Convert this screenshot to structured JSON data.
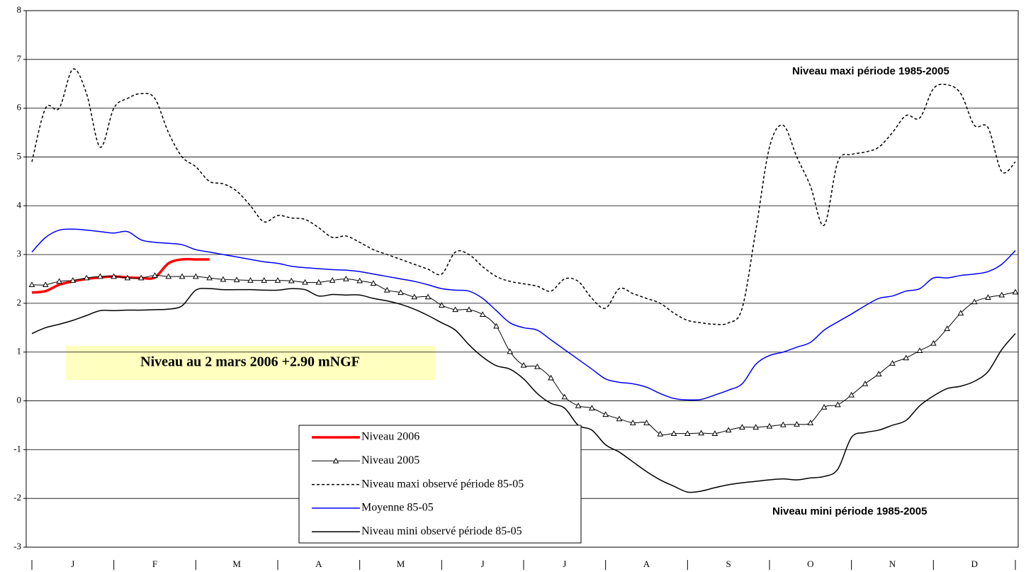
{
  "chart_data": {
    "type": "line",
    "categories": [
      "J",
      "F",
      "M",
      "A",
      "M",
      "J",
      "J",
      "A",
      "S",
      "O",
      "N",
      "D"
    ],
    "x": [
      0,
      1,
      2,
      3,
      4,
      5,
      6,
      7,
      8,
      9,
      10,
      11,
      12,
      13,
      14,
      15,
      16,
      17,
      18,
      19,
      20,
      21,
      22,
      23,
      24,
      25,
      26,
      27,
      28,
      29,
      30,
      31,
      32,
      33,
      34,
      35,
      36,
      37,
      38,
      39,
      40,
      41,
      42,
      43,
      44,
      45,
      46,
      47,
      48,
      49,
      50,
      51,
      52,
      53,
      54,
      55,
      56,
      57,
      58,
      59,
      60,
      61,
      62,
      63,
      64,
      65,
      66,
      67,
      68,
      69,
      70,
      71,
      72
    ],
    "xlim": [
      0,
      72
    ],
    "ylim": [
      -3,
      8
    ],
    "yticks": [
      -3,
      -2,
      -1,
      0,
      1,
      2,
      3,
      4,
      5,
      6,
      7,
      8
    ],
    "grid": true,
    "series": [
      {
        "name": "Niveau 2006",
        "color": "#ff0000",
        "linewidth": 3.5,
        "values": [
          2.22,
          2.25,
          2.38,
          2.45,
          2.5,
          2.53,
          2.55,
          2.53,
          2.52,
          2.53,
          2.82,
          2.9,
          2.9,
          2.9,
          null,
          null,
          null,
          null,
          null,
          null,
          null,
          null,
          null,
          null,
          null,
          null,
          null,
          null,
          null,
          null,
          null,
          null,
          null,
          null,
          null,
          null,
          null,
          null,
          null,
          null,
          null,
          null,
          null,
          null,
          null,
          null,
          null,
          null,
          null,
          null,
          null,
          null,
          null,
          null,
          null,
          null,
          null,
          null,
          null,
          null,
          null,
          null,
          null,
          null,
          null,
          null,
          null,
          null,
          null,
          null,
          null,
          null,
          null
        ]
      },
      {
        "name": "Niveau 2005",
        "color": "#000000",
        "linewidth": 1,
        "marker": "triangle",
        "values": [
          2.38,
          2.38,
          2.45,
          2.47,
          2.52,
          2.55,
          2.55,
          2.52,
          2.52,
          2.57,
          2.55,
          2.55,
          2.55,
          2.52,
          2.49,
          2.48,
          2.47,
          2.47,
          2.47,
          2.46,
          2.43,
          2.43,
          2.47,
          2.5,
          2.46,
          2.41,
          2.27,
          2.22,
          2.13,
          2.13,
          1.96,
          1.87,
          1.87,
          1.77,
          1.53,
          1.01,
          0.73,
          0.7,
          0.47,
          0.08,
          -0.1,
          -0.15,
          -0.28,
          -0.37,
          -0.45,
          -0.45,
          -0.68,
          -0.67,
          -0.67,
          -0.66,
          -0.67,
          -0.6,
          -0.54,
          -0.54,
          -0.52,
          -0.49,
          -0.48,
          -0.45,
          -0.13,
          -0.08,
          0.12,
          0.35,
          0.55,
          0.77,
          0.88,
          1.03,
          1.18,
          1.48,
          1.8,
          2.03,
          2.12,
          2.17,
          2.23
        ]
      },
      {
        "name": "Niveau maxi observé période 85-05",
        "color": "#000000",
        "linewidth": 1.5,
        "style": "dashed",
        "values": [
          4.9,
          6.0,
          6.0,
          6.8,
          6.3,
          5.2,
          6.0,
          6.2,
          6.3,
          6.2,
          5.5,
          5.0,
          4.8,
          4.5,
          4.45,
          4.3,
          4.0,
          3.67,
          3.8,
          3.75,
          3.72,
          3.55,
          3.35,
          3.38,
          3.25,
          3.1,
          3.0,
          2.9,
          2.8,
          2.7,
          2.6,
          3.05,
          3.0,
          2.75,
          2.55,
          2.45,
          2.4,
          2.35,
          2.25,
          2.5,
          2.45,
          2.1,
          1.9,
          2.3,
          2.2,
          2.1,
          2.0,
          1.8,
          1.65,
          1.6,
          1.57,
          1.6,
          1.9,
          3.5,
          5.2,
          5.65,
          5.0,
          4.4,
          3.6,
          4.9,
          5.05,
          5.1,
          5.2,
          5.5,
          5.85,
          5.8,
          6.4,
          6.48,
          6.3,
          5.65,
          5.6,
          4.7,
          4.9
        ]
      },
      {
        "name": "Moyenne 85-05",
        "color": "#0000ff",
        "linewidth": 1.5,
        "values": [
          3.05,
          3.35,
          3.5,
          3.52,
          3.5,
          3.47,
          3.44,
          3.47,
          3.3,
          3.25,
          3.23,
          3.2,
          3.1,
          3.05,
          3.0,
          2.95,
          2.9,
          2.85,
          2.82,
          2.76,
          2.73,
          2.71,
          2.69,
          2.68,
          2.65,
          2.6,
          2.55,
          2.5,
          2.45,
          2.38,
          2.3,
          2.27,
          2.25,
          2.1,
          1.85,
          1.6,
          1.5,
          1.45,
          1.25,
          1.05,
          0.85,
          0.65,
          0.45,
          0.38,
          0.35,
          0.28,
          0.15,
          0.05,
          0.02,
          0.03,
          0.12,
          0.22,
          0.35,
          0.75,
          0.93,
          1.0,
          1.1,
          1.2,
          1.45,
          1.62,
          1.78,
          1.95,
          2.1,
          2.15,
          2.25,
          2.3,
          2.52,
          2.52,
          2.57,
          2.6,
          2.65,
          2.8,
          3.08
        ]
      },
      {
        "name": "Niveau mini observé période 85-05",
        "color": "#000000",
        "linewidth": 1.5,
        "values": [
          1.38,
          1.5,
          1.57,
          1.65,
          1.75,
          1.85,
          1.85,
          1.86,
          1.86,
          1.87,
          1.88,
          1.95,
          2.27,
          2.3,
          2.28,
          2.28,
          2.28,
          2.27,
          2.27,
          2.3,
          2.28,
          2.15,
          2.18,
          2.17,
          2.17,
          2.1,
          2.05,
          1.98,
          1.88,
          1.75,
          1.6,
          1.45,
          1.15,
          0.9,
          0.72,
          0.65,
          0.45,
          0.15,
          -0.05,
          -0.15,
          -0.5,
          -0.6,
          -0.9,
          -1.05,
          -1.25,
          -1.45,
          -1.62,
          -1.75,
          -1.87,
          -1.85,
          -1.78,
          -1.72,
          -1.68,
          -1.65,
          -1.62,
          -1.6,
          -1.62,
          -1.58,
          -1.55,
          -1.4,
          -0.75,
          -0.65,
          -0.6,
          -0.5,
          -0.4,
          -0.1,
          0.1,
          0.25,
          0.3,
          0.4,
          0.6,
          1.05,
          1.38
        ]
      }
    ],
    "annotations": [
      "Niveau maxi période 1985-2005",
      "Niveau mini période 1985-2005",
      "Niveau au 2 mars 2006 +2.90 mNGF"
    ]
  }
}
